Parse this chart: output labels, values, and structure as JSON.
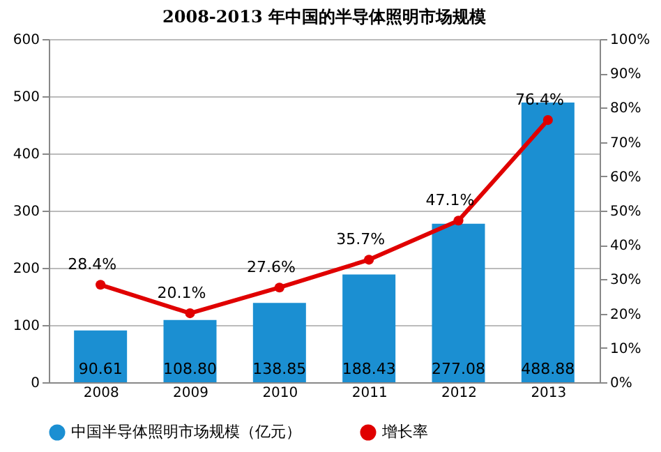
{
  "chart_data": {
    "type": "bar",
    "title": "2008-2013 年中国的半导体照明市场规模",
    "categories": [
      "2008",
      "2009",
      "2010",
      "2011",
      "2012",
      "2013"
    ],
    "series": [
      {
        "name": "中国半导体照明市场规模（亿元）",
        "color": "#1b8fd2",
        "values": [
          90.61,
          108.8,
          138.85,
          188.43,
          277.08,
          488.88
        ],
        "value_labels": [
          "90.61",
          "108.80",
          "138.85",
          "188.43",
          "277.08",
          "488.88"
        ]
      },
      {
        "name": "增长率",
        "type": "line",
        "axis": "y2",
        "color": "#e00000",
        "marker": "circle",
        "values": [
          28.4,
          20.1,
          27.6,
          35.7,
          47.1,
          76.4
        ],
        "value_labels": [
          "28.4%",
          "20.1%",
          "27.6%",
          "35.7%",
          "47.1%",
          "76.4%"
        ]
      }
    ],
    "ylim": [
      0,
      600
    ],
    "yticks": [
      0,
      100,
      200,
      300,
      400,
      500,
      600
    ],
    "y2lim": [
      0,
      100
    ],
    "y2ticks": [
      {
        "value": 0,
        "label": "0%"
      },
      {
        "value": 10,
        "label": "10%"
      },
      {
        "value": 20,
        "label": "20%"
      },
      {
        "value": 30,
        "label": "30%"
      },
      {
        "value": 40,
        "label": "40%"
      },
      {
        "value": 50,
        "label": "50%"
      },
      {
        "value": 60,
        "label": "60%"
      },
      {
        "value": 70,
        "label": "70%"
      },
      {
        "value": 80,
        "label": "80%"
      },
      {
        "value": 90,
        "label": "90%"
      },
      {
        "value": 100,
        "label": "100%"
      }
    ],
    "grid": "y",
    "legend": "bottom"
  }
}
